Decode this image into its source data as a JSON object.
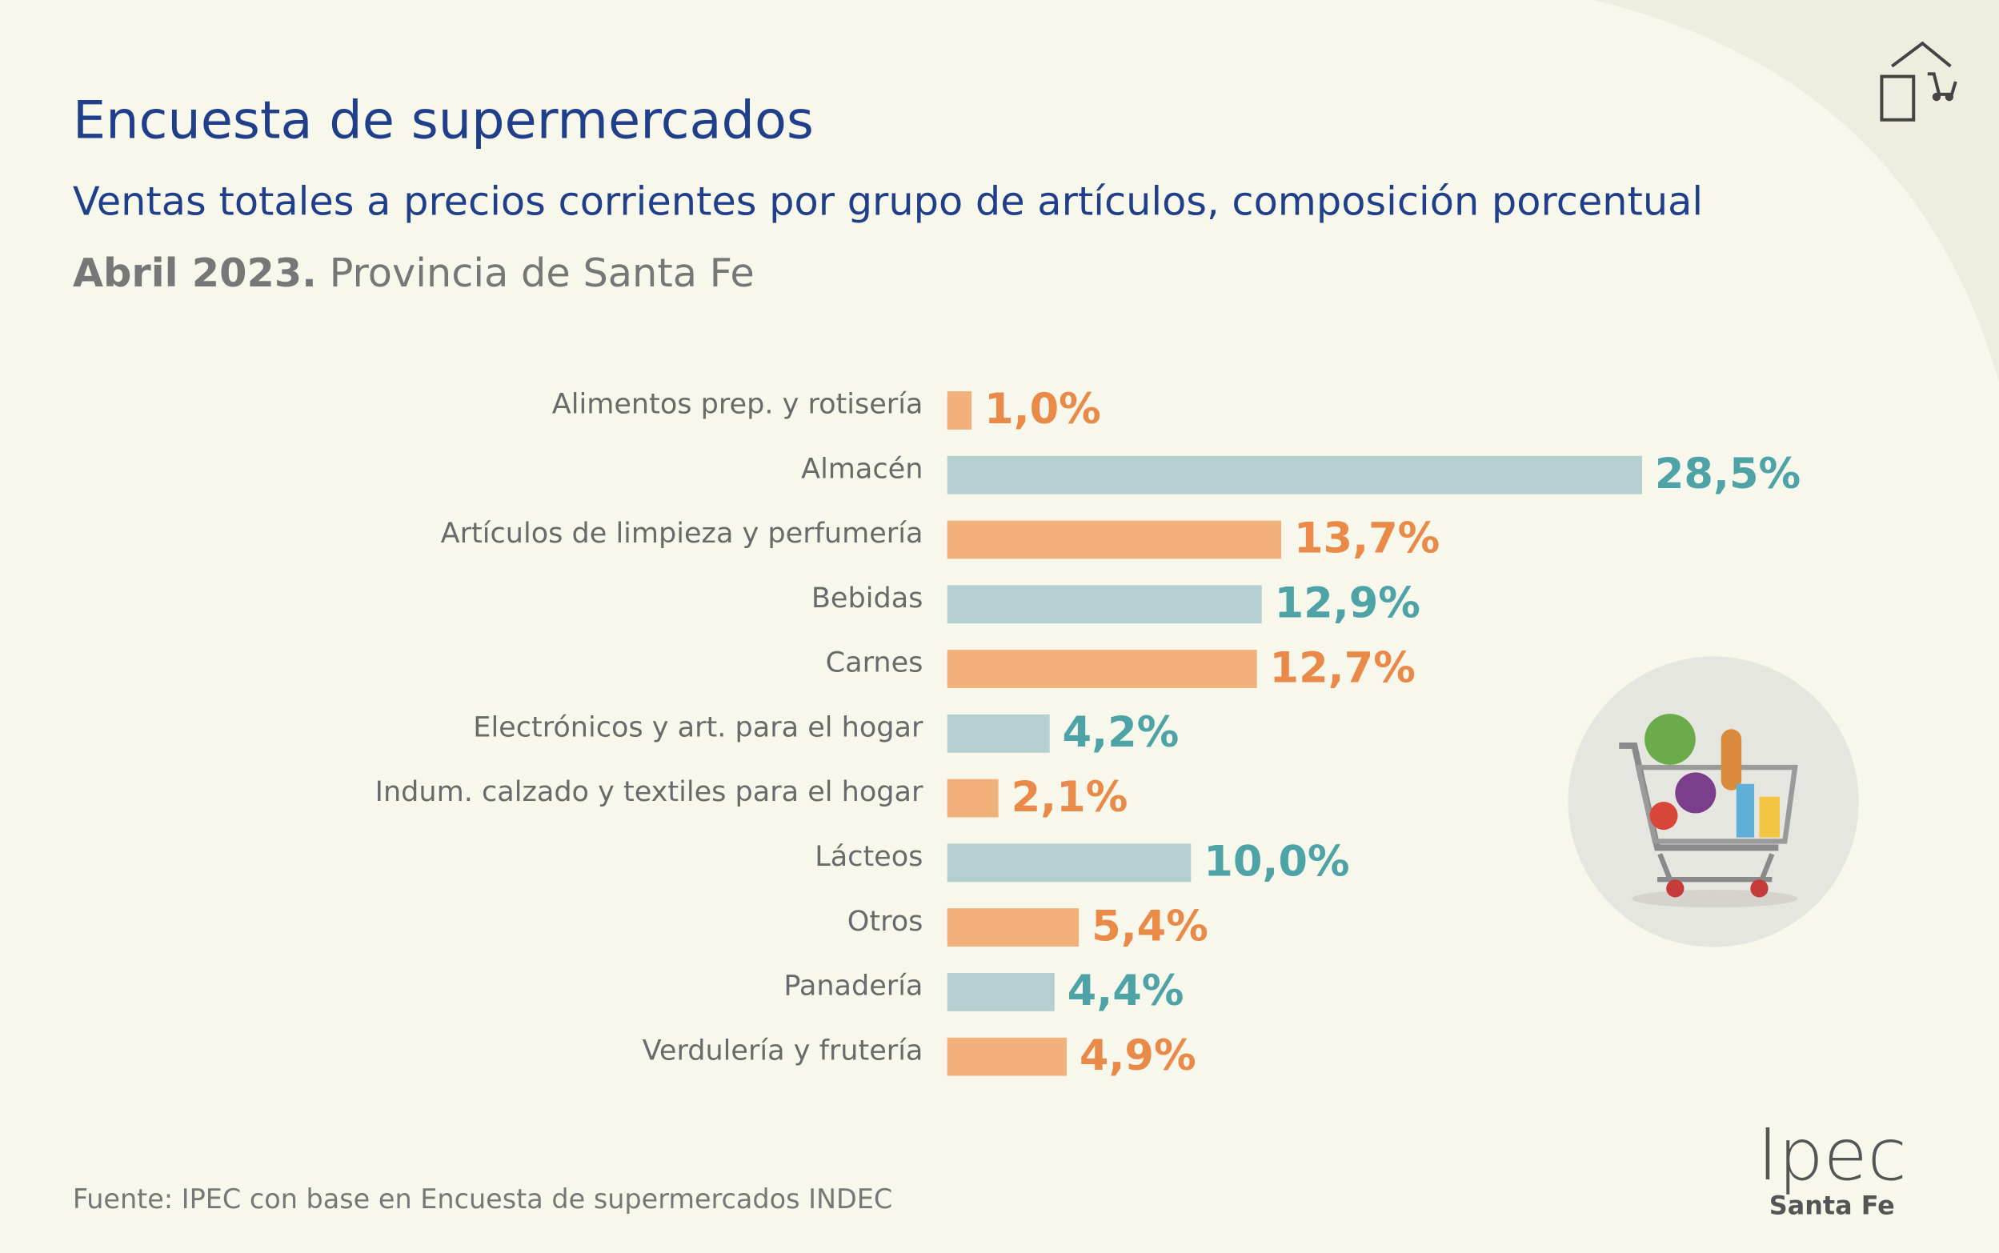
{
  "chart_data": {
    "type": "bar",
    "orientation": "horizontal",
    "title": "Encuesta de supermercados",
    "subtitle": "Ventas totales a precios corrientes por grupo de artículos, composición porcentual",
    "date": "Abril 2023.",
    "region": "Provincia de Santa Fe",
    "categories": [
      "Alimentos prep. y rotisería",
      "Almacén",
      "Artículos de limpieza y perfumería",
      "Bebidas",
      "Carnes",
      "Electrónicos y art. para el hogar",
      "Indum. calzado y textiles para el hogar",
      "Lácteos",
      "Otros",
      "Panadería",
      "Verdulería y frutería"
    ],
    "values": [
      1.0,
      28.5,
      13.7,
      12.9,
      12.7,
      4.2,
      2.1,
      10.0,
      5.4,
      4.4,
      4.9
    ],
    "value_labels": [
      "1,0%",
      "28,5%",
      "13,7%",
      "12,9%",
      "12,7%",
      "4,2%",
      "2,1%",
      "10,0%",
      "5,4%",
      "4,4%",
      "4,9%"
    ],
    "colors": [
      "#f2b07a",
      "#b3cfcf",
      "#f2b07a",
      "#b3cfcf",
      "#f2b07a",
      "#b3cfcf",
      "#f2b07a",
      "#b3cfcf",
      "#f2b07a",
      "#b3cfcf",
      "#f2b07a"
    ],
    "label_colors": [
      "#e98a48",
      "#4ea3a7",
      "#e98a48",
      "#4ea3a7",
      "#e98a48",
      "#4ea3a7",
      "#e98a48",
      "#4ea3a7",
      "#e98a48",
      "#4ea3a7",
      "#e98a48"
    ],
    "source": "Fuente: IPEC con base en Encuesta de supermercados INDEC"
  },
  "logo": {
    "name": "Ipec",
    "region": "Santa Fe"
  }
}
